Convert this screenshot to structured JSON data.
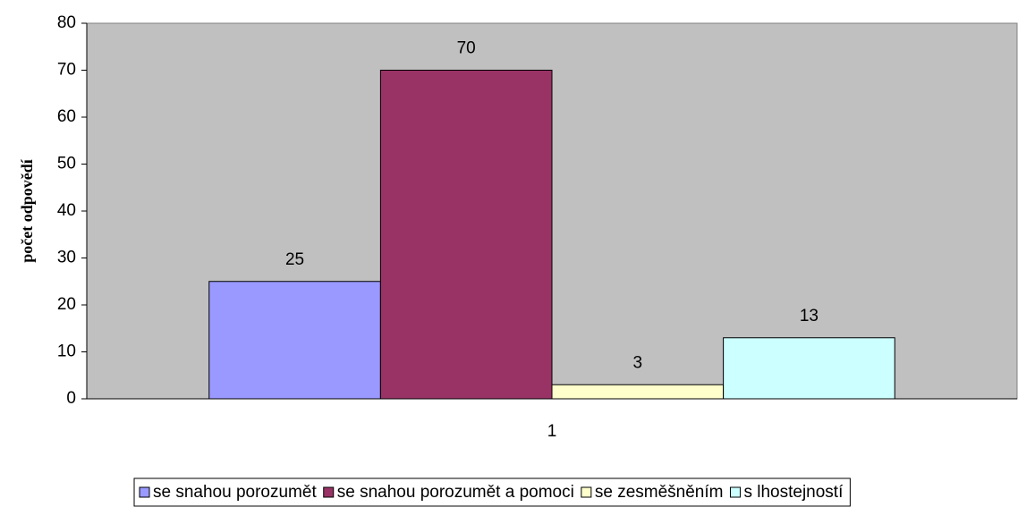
{
  "chart_data": {
    "type": "bar",
    "ylabel": "počet odpovědí",
    "categories": [
      "1"
    ],
    "series": [
      {
        "name": "se snahou porozumět",
        "color": "#9999ff",
        "values": [
          25
        ]
      },
      {
        "name": "se snahou porozumět a pomoci",
        "color": "#993366",
        "values": [
          70
        ]
      },
      {
        "name": "se zesměšněním",
        "color": "#ffffcc",
        "values": [
          3
        ]
      },
      {
        "name": "s lhostejností",
        "color": "#ccffff",
        "values": [
          13
        ]
      }
    ],
    "ylim": [
      0,
      80
    ],
    "yticks": [
      0,
      10,
      20,
      30,
      40,
      50,
      60,
      70,
      80
    ],
    "plot_background": "#c0c0c0",
    "grid": false,
    "legend": "bottom"
  }
}
